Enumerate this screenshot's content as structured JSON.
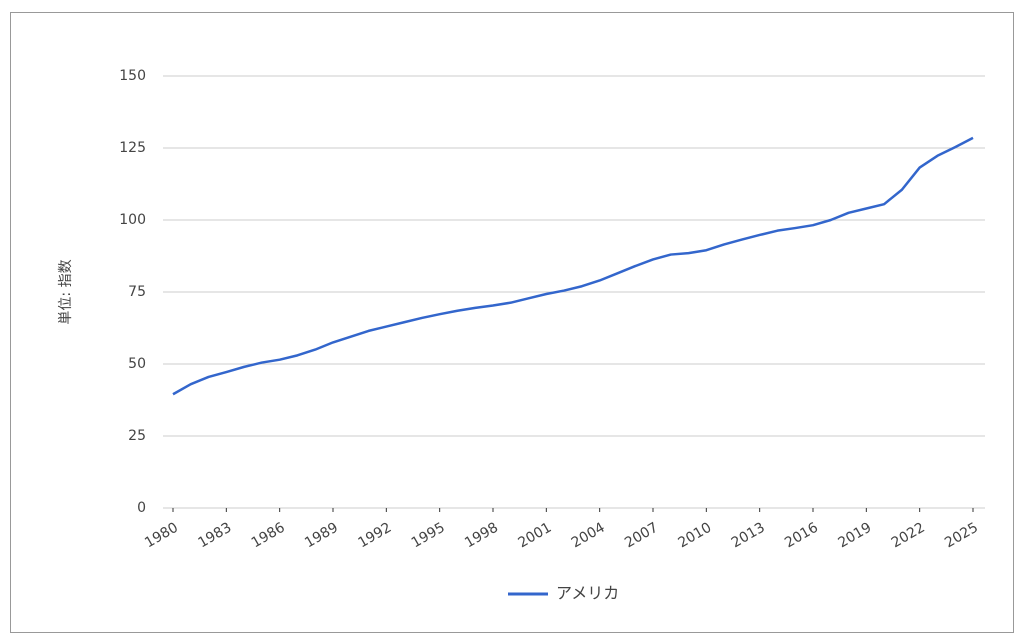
{
  "chart_data": {
    "type": "line",
    "y_label": "単位: 指数",
    "x": [
      1980,
      1981,
      1982,
      1983,
      1984,
      1985,
      1986,
      1987,
      1988,
      1989,
      1990,
      1991,
      1992,
      1993,
      1994,
      1995,
      1996,
      1997,
      1998,
      1999,
      2000,
      2001,
      2002,
      2003,
      2004,
      2005,
      2006,
      2007,
      2008,
      2009,
      2010,
      2011,
      2012,
      2013,
      2014,
      2015,
      2016,
      2017,
      2018,
      2019,
      2020,
      2021,
      2022,
      2023,
      2024,
      2025
    ],
    "series": [
      {
        "name": "アメリカ",
        "color": "#3366cc",
        "values": [
          39.5,
          43,
          45.5,
          47.2,
          49,
          50.5,
          51.5,
          53,
          55,
          57.5,
          59.5,
          61.5,
          63,
          64.5,
          66,
          67.3,
          68.5,
          69.5,
          70.3,
          71.3,
          72.8,
          74.3,
          75.5,
          77,
          79,
          81.5,
          84,
          86.3,
          88,
          88.5,
          89.5,
          91.5,
          93.2,
          94.8,
          96.3,
          97.2,
          98.2,
          100,
          102.5,
          104,
          105.5,
          110.5,
          118.2,
          122.3,
          125.3,
          128.5
        ]
      }
    ],
    "xlim": [
      1980,
      2025
    ],
    "xticks": [
      1980,
      1983,
      1986,
      1989,
      1992,
      1995,
      1998,
      2001,
      2004,
      2007,
      2010,
      2013,
      2016,
      2019,
      2022,
      2025
    ],
    "ylim": [
      0,
      150
    ],
    "yticks": [
      0,
      25,
      50,
      75,
      100,
      125,
      150
    ],
    "grid": true,
    "legend": "bottom"
  }
}
